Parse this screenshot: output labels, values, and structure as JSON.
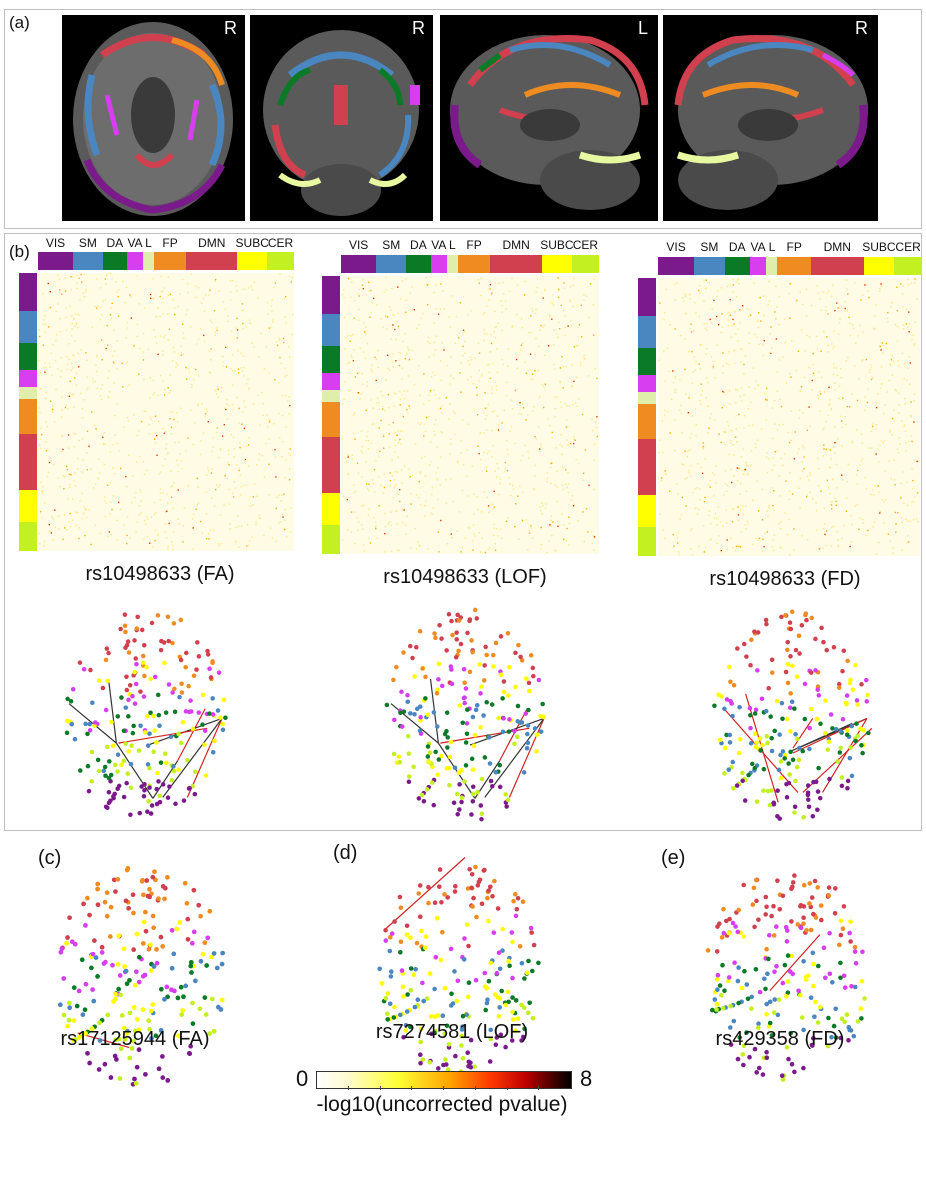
{
  "panels": {
    "a": {
      "letter": "(a)",
      "views": [
        {
          "side_label": "R",
          "view": "axial"
        },
        {
          "side_label": "R",
          "view": "coronal"
        },
        {
          "side_label": "L",
          "view": "sagittal-left"
        },
        {
          "side_label": "R",
          "view": "sagittal-right"
        }
      ]
    },
    "b": {
      "letter": "(b)",
      "matrices": [
        {
          "caption": "rs10498633 (FA)"
        },
        {
          "caption": "rs10498633 (LOF)"
        },
        {
          "caption": "rs10498633 (FD)"
        }
      ]
    },
    "c": {
      "letter": "(c)",
      "caption": "rs17125944 (FA)"
    },
    "d": {
      "letter": "(d)",
      "caption": "rs7274581 (LOF)"
    },
    "e": {
      "letter": "(e)",
      "caption": "rs429358 (FD)"
    }
  },
  "networks": [
    {
      "label": "VIS",
      "color": "#7b1a8a",
      "share": 13
    },
    {
      "label": "SM",
      "color": "#4a86c0",
      "share": 11
    },
    {
      "label": "DA",
      "color": "#0b7a27",
      "share": 9
    },
    {
      "label": "VA",
      "color": "#d63ef0",
      "share": 6
    },
    {
      "label": "L",
      "color": "#dfeeaa",
      "share": 4
    },
    {
      "label": "FP",
      "color": "#ee8c22",
      "share": 12
    },
    {
      "label": "DMN",
      "color": "#d1404e",
      "share": 19
    },
    {
      "label": "SUBC",
      "color": "#ffff00",
      "share": 11
    },
    {
      "label": "CER",
      "color": "#c3f020",
      "share": 10
    }
  ],
  "colorbar": {
    "min_label": "0",
    "max_label": "8",
    "title": "-log10(uncorrected pvalue)"
  }
}
